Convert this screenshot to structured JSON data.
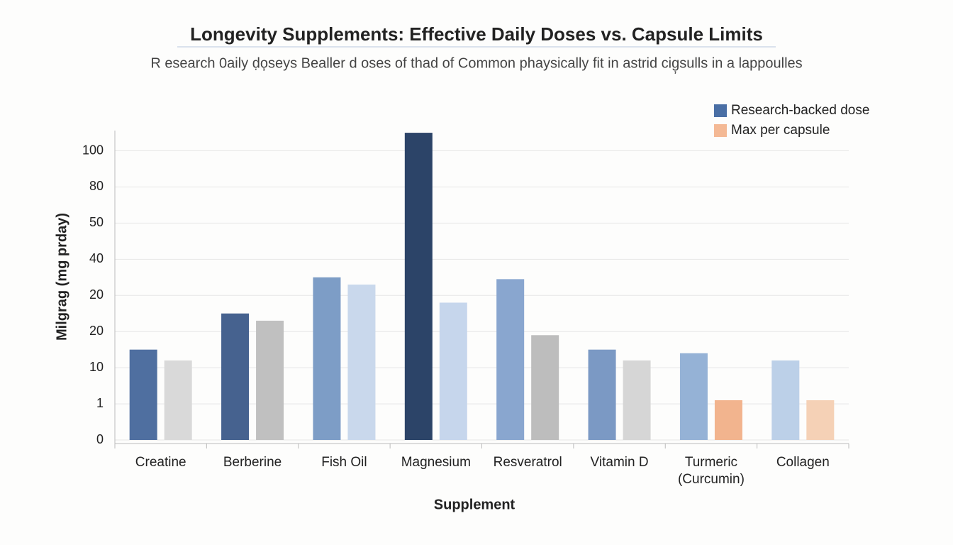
{
  "chart_data": {
    "type": "bar",
    "title": "Longevity Supplements: Effective Daily Doses vs. Capsule Limits",
    "subtitle": "R esearch 0aily ḍo̦seys Bealler d oses of thad of Common phaysically fit in astrid cig̦sulls in a lappoulles",
    "x_label": "Supplement",
    "y_label": "Milgrag (mg prday)",
    "categories": [
      "Creatine",
      "Berberine",
      "Fish Oil",
      "Magnesium",
      "Resveratrol",
      "Vitamin D",
      "Turmeric (Curcumin)",
      "Collagen"
    ],
    "series": [
      {
        "name": "Research-backed dose",
        "color": "#4a6fa5",
        "colors": [
          "#4f6fa0",
          "#46628f",
          "#7d9dc6",
          "#2c4468",
          "#89a6cf",
          "#7b99c4",
          "#95b2d6",
          "#bcd0e8"
        ],
        "values": [
          2.5,
          3.5,
          4.5,
          8.5,
          4.45,
          2.5,
          2.4,
          2.2
        ]
      },
      {
        "name": "Max per capsule",
        "color": "#f4b995",
        "colors": [
          "#d9d9d9",
          "#c0c0c0",
          "#c9d8ec",
          "#c6d6ec",
          "#bdbdbd",
          "#d6d6d6",
          "#f2b48e",
          "#f5d1b6"
        ],
        "values": [
          2.2,
          3.3,
          4.3,
          3.8,
          2.9,
          2.2,
          1.1,
          1.1
        ]
      }
    ],
    "ylim": [
      0,
      8.6
    ],
    "yticks": [
      {
        "value": 0,
        "label": "0"
      },
      {
        "value": 1,
        "label": "1"
      },
      {
        "value": 2,
        "label": "10"
      },
      {
        "value": 3,
        "label": "20"
      },
      {
        "value": 4,
        "label": "20"
      },
      {
        "value": 5,
        "label": "40"
      },
      {
        "value": 6,
        "label": "50"
      },
      {
        "value": 7,
        "label": "80"
      },
      {
        "value": 8,
        "label": "100"
      }
    ],
    "grid": true,
    "legend": "upper right"
  }
}
